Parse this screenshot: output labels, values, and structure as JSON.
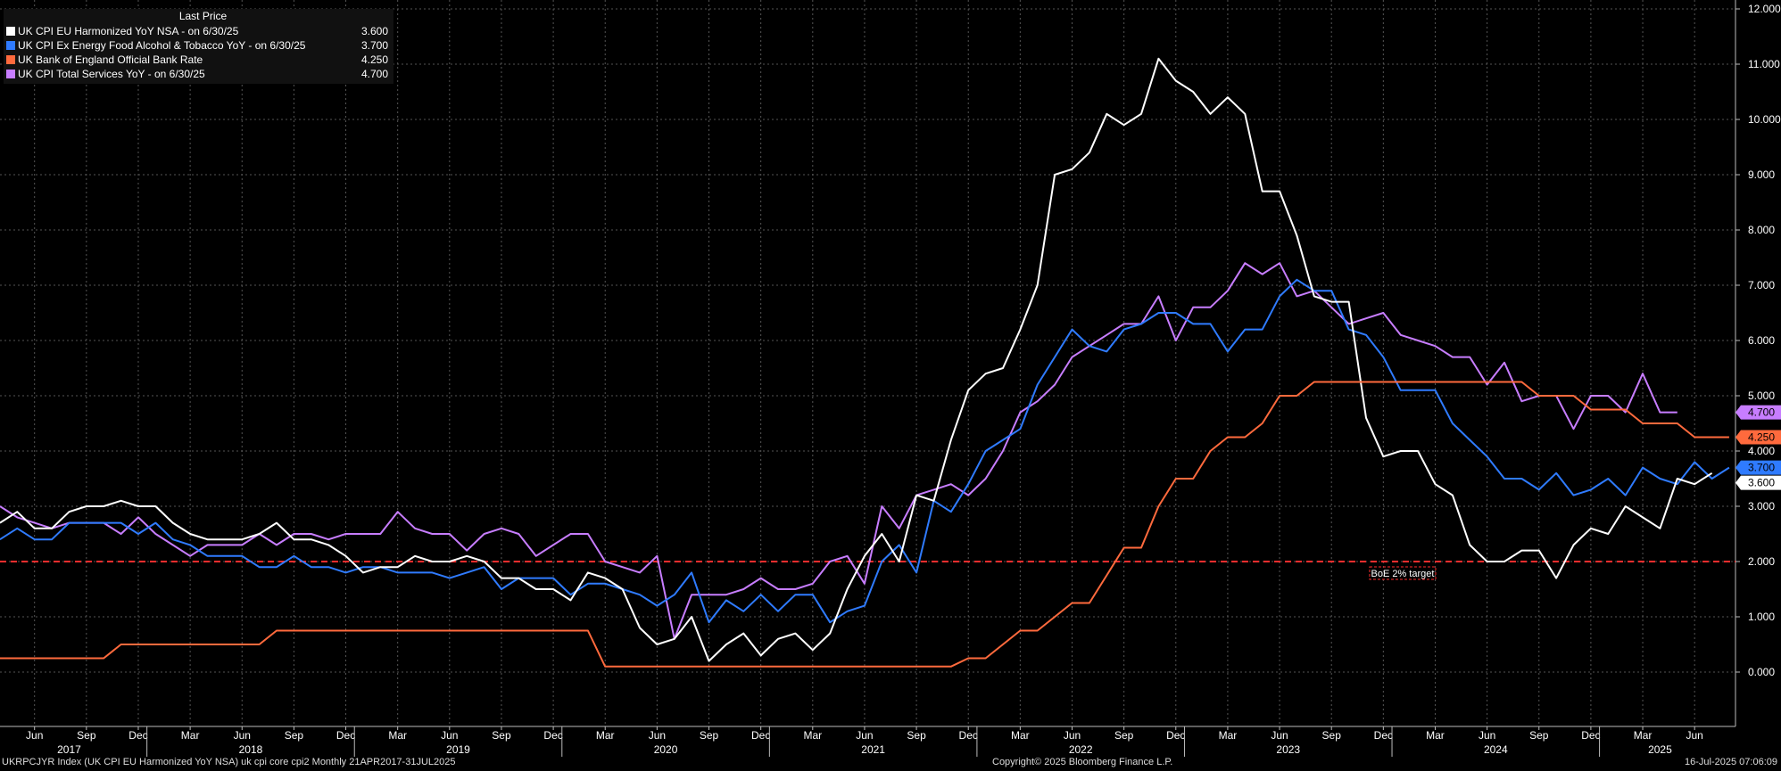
{
  "legend": {
    "header": "Last Price",
    "items": [
      {
        "label": "UK CPI EU Harmonized YoY NSA -  on 6/30/25",
        "value": "3.600",
        "color": "#ffffff"
      },
      {
        "label": "UK CPI Ex Energy Food Alcohol & Tobacco YoY -  on 6/30/25",
        "value": "3.700",
        "color": "#2f7bff"
      },
      {
        "label": "UK Bank of England Official Bank Rate",
        "value": "4.250",
        "color": "#ff6a3d"
      },
      {
        "label": "UK CPI Total Services YoY -  on 6/30/25",
        "value": "4.700",
        "color": "#c77dff"
      }
    ]
  },
  "footer": {
    "left": "UKRPCJYR Index (UK CPI EU Harmonized YoY NSA) uk cpi core cpi2  Monthly 21APR2017-31JUL2025",
    "center": "Copyright© 2025 Bloomberg Finance L.P.",
    "right": "16-Jul-2025 07:06:09"
  },
  "chart_data": {
    "type": "line",
    "start": "2017-04",
    "ylim": [
      -1,
      12
    ],
    "ytick_labels": [
      "0.000",
      "1.000",
      "2.000",
      "3.000",
      "4.000",
      "5.000",
      "6.000",
      "7.000",
      "8.000",
      "9.000",
      "10.000",
      "11.000",
      "12.000"
    ],
    "month_labels": [
      {
        "label": "Jun",
        "x": "2017-06"
      },
      {
        "label": "Sep",
        "x": "2017-09"
      },
      {
        "label": "Dec",
        "x": "2017-12"
      },
      {
        "label": "Mar",
        "x": "2018-03"
      },
      {
        "label": "Jun",
        "x": "2018-06"
      },
      {
        "label": "Sep",
        "x": "2018-09"
      },
      {
        "label": "Dec",
        "x": "2018-12"
      },
      {
        "label": "Mar",
        "x": "2019-03"
      },
      {
        "label": "Jun",
        "x": "2019-06"
      },
      {
        "label": "Sep",
        "x": "2019-09"
      },
      {
        "label": "Dec",
        "x": "2019-12"
      },
      {
        "label": "Mar",
        "x": "2020-03"
      },
      {
        "label": "Jun",
        "x": "2020-06"
      },
      {
        "label": "Sep",
        "x": "2020-09"
      },
      {
        "label": "Dec",
        "x": "2020-12"
      },
      {
        "label": "Mar",
        "x": "2021-03"
      },
      {
        "label": "Jun",
        "x": "2021-06"
      },
      {
        "label": "Sep",
        "x": "2021-09"
      },
      {
        "label": "Dec",
        "x": "2021-12"
      },
      {
        "label": "Mar",
        "x": "2022-03"
      },
      {
        "label": "Jun",
        "x": "2022-06"
      },
      {
        "label": "Sep",
        "x": "2022-09"
      },
      {
        "label": "Dec",
        "x": "2022-12"
      },
      {
        "label": "Mar",
        "x": "2023-03"
      },
      {
        "label": "Jun",
        "x": "2023-06"
      },
      {
        "label": "Sep",
        "x": "2023-09"
      },
      {
        "label": "Dec",
        "x": "2023-12"
      },
      {
        "label": "Mar",
        "x": "2024-03"
      },
      {
        "label": "Jun",
        "x": "2024-06"
      },
      {
        "label": "Sep",
        "x": "2024-09"
      },
      {
        "label": "Dec",
        "x": "2024-12"
      },
      {
        "label": "Mar",
        "x": "2025-03"
      },
      {
        "label": "Jun",
        "x": "2025-06"
      }
    ],
    "year_labels": [
      "2017",
      "2018",
      "2019",
      "2020",
      "2021",
      "2022",
      "2023",
      "2024",
      "2025"
    ],
    "target_line": {
      "value": 2.0,
      "label": "BoE 2% target",
      "color": "#ff2d2d"
    },
    "series": [
      {
        "name": "UK CPI Total Services YoY",
        "color": "#c77dff",
        "last_label": "4.700",
        "values": [
          3.0,
          2.8,
          2.7,
          2.6,
          2.7,
          2.7,
          2.7,
          2.5,
          2.8,
          2.5,
          2.3,
          2.1,
          2.3,
          2.3,
          2.3,
          2.5,
          2.3,
          2.5,
          2.5,
          2.4,
          2.5,
          2.5,
          2.5,
          2.9,
          2.6,
          2.5,
          2.5,
          2.2,
          2.5,
          2.6,
          2.5,
          2.1,
          2.3,
          2.5,
          2.5,
          2.0,
          1.9,
          1.8,
          2.1,
          0.6,
          1.4,
          1.4,
          1.4,
          1.5,
          1.7,
          1.5,
          1.5,
          1.6,
          2.0,
          2.1,
          1.6,
          3.0,
          2.6,
          3.2,
          3.3,
          3.4,
          3.2,
          3.5,
          4.0,
          4.7,
          4.9,
          5.2,
          5.7,
          5.9,
          6.1,
          6.3,
          6.3,
          6.8,
          6.0,
          6.6,
          6.6,
          6.9,
          7.4,
          7.2,
          7.4,
          6.8,
          6.9,
          6.6,
          6.3,
          6.4,
          6.5,
          6.1,
          6.0,
          5.9,
          5.7,
          5.7,
          5.2,
          5.6,
          4.9,
          5.0,
          5.0,
          4.4,
          5.0,
          5.0,
          4.7,
          5.4,
          4.7,
          4.7
        ]
      },
      {
        "name": "UK CPI Ex Energy Food Alcohol & Tobacco YoY",
        "color": "#2f7bff",
        "last_label": "3.700",
        "values": [
          2.4,
          2.6,
          2.4,
          2.4,
          2.7,
          2.7,
          2.7,
          2.7,
          2.5,
          2.7,
          2.4,
          2.3,
          2.1,
          2.1,
          2.1,
          1.9,
          1.9,
          2.1,
          1.9,
          1.9,
          1.8,
          1.9,
          1.9,
          1.8,
          1.8,
          1.8,
          1.7,
          1.8,
          1.9,
          1.5,
          1.7,
          1.7,
          1.7,
          1.4,
          1.6,
          1.6,
          1.5,
          1.4,
          1.2,
          1.4,
          1.8,
          0.9,
          1.3,
          1.1,
          1.4,
          1.1,
          1.4,
          1.4,
          0.9,
          1.1,
          1.2,
          2.0,
          2.3,
          1.8,
          3.1,
          2.9,
          3.4,
          4.0,
          4.2,
          4.4,
          5.2,
          5.7,
          6.2,
          5.9,
          5.8,
          6.2,
          6.3,
          6.5,
          6.5,
          6.3,
          6.3,
          5.8,
          6.2,
          6.2,
          6.8,
          7.1,
          6.9,
          6.9,
          6.2,
          6.1,
          5.7,
          5.1,
          5.1,
          5.1,
          4.5,
          4.2,
          3.9,
          3.5,
          3.5,
          3.3,
          3.6,
          3.2,
          3.3,
          3.5,
          3.2,
          3.7,
          3.5,
          3.4,
          3.8,
          3.5,
          3.7
        ]
      },
      {
        "name": "UK CPI EU Harmonized YoY NSA",
        "color": "#ffffff",
        "last_label": "3.600",
        "values": [
          2.7,
          2.9,
          2.6,
          2.6,
          2.9,
          3.0,
          3.0,
          3.1,
          3.0,
          3.0,
          2.7,
          2.5,
          2.4,
          2.4,
          2.4,
          2.5,
          2.7,
          2.4,
          2.4,
          2.3,
          2.1,
          1.8,
          1.9,
          1.9,
          2.1,
          2.0,
          2.0,
          2.1,
          2.0,
          1.7,
          1.7,
          1.5,
          1.5,
          1.3,
          1.8,
          1.7,
          1.5,
          0.8,
          0.5,
          0.6,
          1.0,
          0.2,
          0.5,
          0.7,
          0.3,
          0.6,
          0.7,
          0.4,
          0.7,
          1.5,
          2.1,
          2.5,
          2.0,
          3.2,
          3.1,
          4.2,
          5.1,
          5.4,
          5.5,
          6.2,
          7.0,
          9.0,
          9.1,
          9.4,
          10.1,
          9.9,
          10.1,
          11.1,
          10.7,
          10.5,
          10.1,
          10.4,
          10.1,
          8.7,
          8.7,
          7.9,
          6.8,
          6.7,
          6.7,
          4.6,
          3.9,
          4.0,
          4.0,
          3.4,
          3.2,
          2.3,
          2.0,
          2.0,
          2.2,
          2.2,
          1.7,
          2.3,
          2.6,
          2.5,
          3.0,
          2.8,
          2.6,
          3.5,
          3.4,
          3.6
        ]
      },
      {
        "name": "UK Bank of England Official Bank Rate",
        "color": "#ff6a3d",
        "last_label": "4.250",
        "values": [
          0.25,
          0.25,
          0.25,
          0.25,
          0.25,
          0.25,
          0.25,
          0.5,
          0.5,
          0.5,
          0.5,
          0.5,
          0.5,
          0.5,
          0.5,
          0.5,
          0.75,
          0.75,
          0.75,
          0.75,
          0.75,
          0.75,
          0.75,
          0.75,
          0.75,
          0.75,
          0.75,
          0.75,
          0.75,
          0.75,
          0.75,
          0.75,
          0.75,
          0.75,
          0.75,
          0.1,
          0.1,
          0.1,
          0.1,
          0.1,
          0.1,
          0.1,
          0.1,
          0.1,
          0.1,
          0.1,
          0.1,
          0.1,
          0.1,
          0.1,
          0.1,
          0.1,
          0.1,
          0.1,
          0.1,
          0.1,
          0.25,
          0.25,
          0.5,
          0.75,
          0.75,
          1.0,
          1.25,
          1.25,
          1.75,
          2.25,
          2.25,
          3.0,
          3.5,
          3.5,
          4.0,
          4.25,
          4.25,
          4.5,
          5.0,
          5.0,
          5.25,
          5.25,
          5.25,
          5.25,
          5.25,
          5.25,
          5.25,
          5.25,
          5.25,
          5.25,
          5.25,
          5.25,
          5.25,
          5.0,
          5.0,
          5.0,
          4.75,
          4.75,
          4.75,
          4.5,
          4.5,
          4.5,
          4.25,
          4.25,
          4.25
        ]
      }
    ]
  }
}
